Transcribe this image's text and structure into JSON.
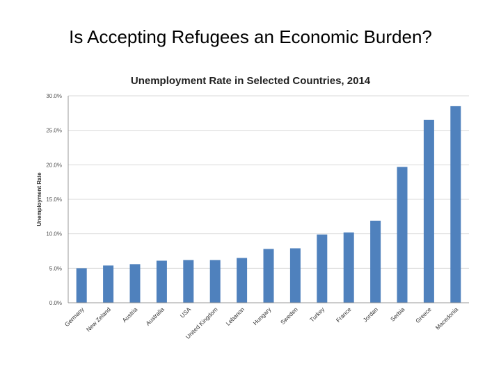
{
  "slide": {
    "title": "Is Accepting Refugees an Economic Burden?"
  },
  "chart_data": {
    "type": "bar",
    "title": "Unemployment Rate in Selected Countries, 2014",
    "xlabel": "",
    "ylabel": "Unemployment Rate",
    "ylim": [
      0,
      30
    ],
    "yticks": [
      "0.0%",
      "5.0%",
      "10.0%",
      "15.0%",
      "20.0%",
      "25.0%",
      "30.0%"
    ],
    "grid": true,
    "legend": "none",
    "bar_color": "#4f81bd",
    "categories": [
      "Germany",
      "New Zeland",
      "Austria",
      "Australia",
      "USA",
      "United Kingdom",
      "Lebanon",
      "Hungary",
      "Sweden",
      "Turkey",
      "France",
      "Jordan",
      "Serbia",
      "Greece",
      "Macedonia"
    ],
    "values": [
      5.0,
      5.4,
      5.6,
      6.1,
      6.2,
      6.2,
      6.5,
      7.8,
      7.9,
      9.9,
      10.2,
      11.9,
      19.7,
      26.5,
      28.5
    ]
  }
}
